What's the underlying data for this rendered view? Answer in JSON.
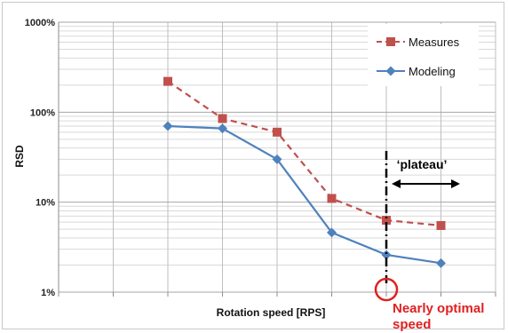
{
  "chart_data": {
    "type": "line",
    "title": "",
    "xlabel": "Rotation speed [RPS]",
    "ylabel": "RSD",
    "yscale": "log",
    "ylim": [
      1,
      1000
    ],
    "y_ticks": [
      {
        "value": 1,
        "label": "1%"
      },
      {
        "value": 10,
        "label": "10%"
      },
      {
        "value": 100,
        "label": "100%"
      },
      {
        "value": 1000,
        "label": "1000%"
      }
    ],
    "x_positions": 8,
    "grid": true,
    "legend": "top-right",
    "series": [
      {
        "name": "Measures",
        "color": "#c0504d",
        "dash": true,
        "marker": "square",
        "x": [
          2,
          3,
          4,
          5,
          6,
          7
        ],
        "values": [
          220,
          85,
          60,
          11,
          6.3,
          5.5
        ]
      },
      {
        "name": "Modeling",
        "color": "#4f81bd",
        "dash": false,
        "marker": "diamond",
        "x": [
          2,
          3,
          4,
          5,
          6,
          7
        ],
        "values": [
          70,
          66,
          30,
          4.6,
          2.6,
          2.1
        ]
      }
    ],
    "annotations": {
      "plateau_label": "‘plateau’",
      "optimal_line": "Nearly optimal",
      "optimal_line2": "speed",
      "optimal_x": 6,
      "plateau_from": 6,
      "plateau_to": 8
    }
  }
}
